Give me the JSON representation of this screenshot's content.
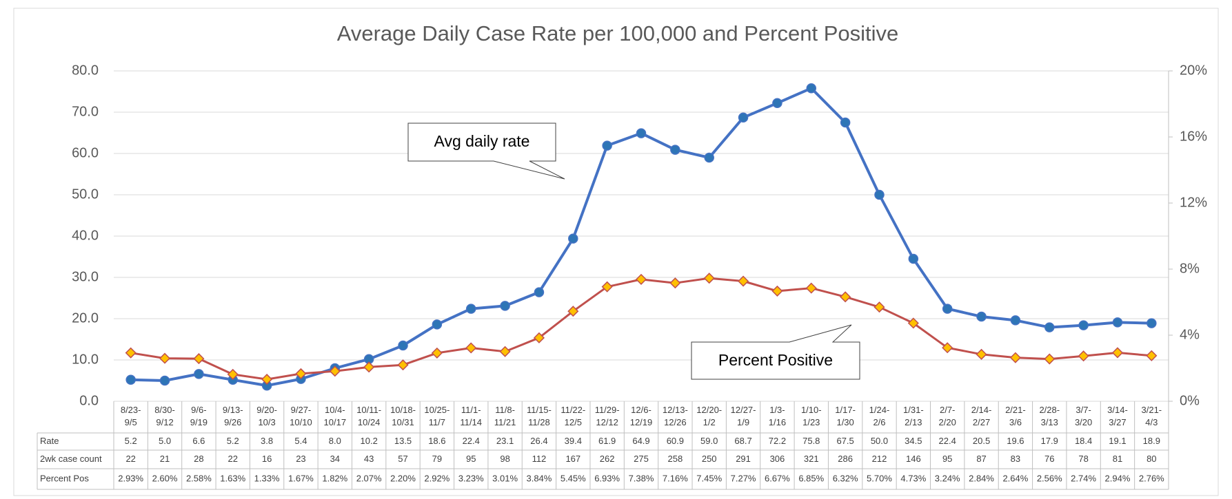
{
  "chart_data": {
    "type": "line",
    "title": "Average Daily Case Rate per 100,000 and Percent Positive",
    "categories": [
      "8/23-9/5",
      "8/30-9/12",
      "9/6-9/19",
      "9/13-9/26",
      "9/20-10/3",
      "9/27-10/10",
      "10/4-10/17",
      "10/11-10/24",
      "10/18-10/31",
      "10/25-11/7",
      "11/1-11/14",
      "11/8-11/21",
      "11/15-11/28",
      "11/22-12/5",
      "11/29-12/12",
      "12/6-12/19",
      "12/13-12/26",
      "12/20-1/2",
      "12/27-1/9",
      "1/3-1/16",
      "1/10-1/23",
      "1/17-1/30",
      "1/24-2/6",
      "1/31-2/13",
      "2/7-2/20",
      "2/14-2/27",
      "2/21-3/6",
      "2/28-3/13",
      "3/7-3/20",
      "3/14-3/27",
      "3/21-4/3"
    ],
    "series": [
      {
        "name": "Rate",
        "color": "#4472c4",
        "marker_color": "#2e75b6",
        "values": [
          5.2,
          5.0,
          6.6,
          5.2,
          3.8,
          5.4,
          8.0,
          10.2,
          13.5,
          18.6,
          22.4,
          23.1,
          26.4,
          39.4,
          61.9,
          64.9,
          60.9,
          59.0,
          68.7,
          72.2,
          75.8,
          67.5,
          50.0,
          34.5,
          22.4,
          20.5,
          19.6,
          17.9,
          18.4,
          19.1,
          18.9
        ],
        "value_labels": [
          "5.2",
          "5.0",
          "6.6",
          "5.2",
          "3.8",
          "5.4",
          "8.0",
          "10.2",
          "13.5",
          "18.6",
          "22.4",
          "23.1",
          "26.4",
          "39.4",
          "61.9",
          "64.9",
          "60.9",
          "59.0",
          "68.7",
          "72.2",
          "75.8",
          "67.5",
          "50.0",
          "34.5",
          "22.4",
          "20.5",
          "19.6",
          "17.9",
          "18.4",
          "19.1",
          "18.9"
        ]
      },
      {
        "name": "Percent Pos",
        "color": "#c0504d",
        "marker_color": "#ffc000",
        "axis": "y2",
        "values": [
          2.93,
          2.6,
          2.58,
          1.63,
          1.33,
          1.67,
          1.82,
          2.07,
          2.2,
          2.92,
          3.23,
          3.01,
          3.84,
          5.45,
          6.93,
          7.38,
          7.16,
          7.45,
          7.27,
          6.67,
          6.85,
          6.32,
          5.7,
          4.73,
          3.24,
          2.84,
          2.64,
          2.56,
          2.74,
          2.94,
          2.76
        ],
        "value_labels": [
          "2.93%",
          "2.60%",
          "2.58%",
          "1.63%",
          "1.33%",
          "1.67%",
          "1.82%",
          "2.07%",
          "2.20%",
          "2.92%",
          "3.23%",
          "3.01%",
          "3.84%",
          "5.45%",
          "6.93%",
          "7.38%",
          "7.16%",
          "7.45%",
          "7.27%",
          "6.67%",
          "6.85%",
          "6.32%",
          "5.70%",
          "4.73%",
          "3.24%",
          "2.84%",
          "2.64%",
          "2.56%",
          "2.74%",
          "2.94%",
          "2.76%"
        ]
      }
    ],
    "table_row": {
      "name": "2wk case count",
      "values": [
        22,
        21,
        28,
        22,
        16,
        23,
        34,
        43,
        57,
        79,
        95,
        98,
        112,
        167,
        262,
        275,
        258,
        250,
        291,
        306,
        321,
        286,
        212,
        146,
        95,
        87,
        83,
        76,
        78,
        81,
        80
      ]
    },
    "annotations": [
      "Avg daily rate",
      "Percent Positive"
    ],
    "ylim": [
      0,
      80
    ],
    "yticks": [
      {
        "value": 0,
        "label": "0.0"
      },
      {
        "value": 10,
        "label": "10.0"
      },
      {
        "value": 20,
        "label": "20.0"
      },
      {
        "value": 30,
        "label": "30.0"
      },
      {
        "value": 40,
        "label": "40.0"
      },
      {
        "value": 50,
        "label": "50.0"
      },
      {
        "value": 60,
        "label": "60.0"
      },
      {
        "value": 70,
        "label": "70.0"
      },
      {
        "value": 80,
        "label": "80.0"
      }
    ],
    "y2lim": [
      0,
      20
    ],
    "y2ticks": [
      {
        "value": 0,
        "label": "0%"
      },
      {
        "value": 4,
        "label": "4%"
      },
      {
        "value": 8,
        "label": "8%"
      },
      {
        "value": 12,
        "label": "12%"
      },
      {
        "value": 16,
        "label": "16%"
      },
      {
        "value": 20,
        "label": "20%"
      }
    ],
    "grid": true
  }
}
